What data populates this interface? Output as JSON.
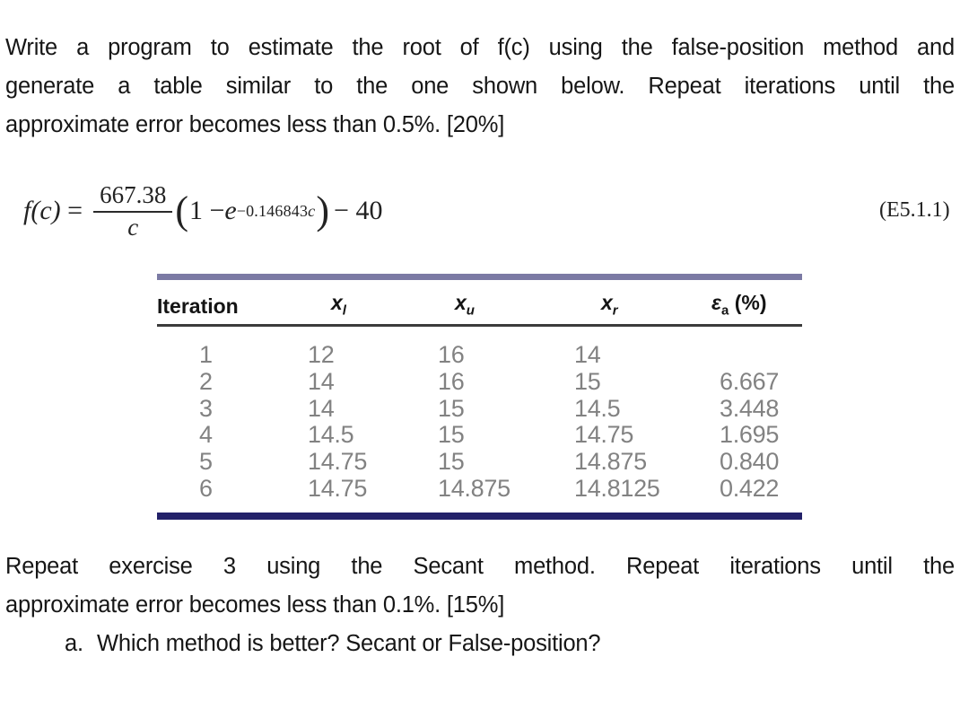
{
  "paragraph_top": {
    "line1": "Write a program to estimate the root of f(c) using the false-position method and",
    "line2": "generate a table similar to the one shown below. Repeat iterations until the",
    "line3": "approximate error becomes less than 0.5%. [20%]"
  },
  "equation": {
    "lhs": "f(c)",
    "equals": "=",
    "numerator": "667.38",
    "denominator": "c",
    "open_paren": "(",
    "body": "1 − ",
    "e": "e",
    "exponent_num": "−0.146843",
    "exponent_var": "c",
    "close_paren": ")",
    "tail": "− 40",
    "label": "(E5.1.1)"
  },
  "table": {
    "headers": {
      "iteration": "Iteration",
      "xl_base": "x",
      "xl_sub": "l",
      "xu_base": "x",
      "xu_sub": "u",
      "xr_base": "x",
      "xr_sub": "r",
      "ea_base": "ε",
      "ea_sub": "a",
      "ea_unit": " (%)"
    },
    "rows": [
      [
        "1",
        "12",
        "16",
        "14",
        ""
      ],
      [
        "2",
        "14",
        "16",
        "15",
        "6.667"
      ],
      [
        "3",
        "14",
        "15",
        "14.5",
        "3.448"
      ],
      [
        "4",
        "14.5",
        "15",
        "14.75",
        "1.695"
      ],
      [
        "5",
        "14.75",
        "15",
        "14.875",
        "0.840"
      ],
      [
        "6",
        "14.75",
        "14.875",
        "14.8125",
        "0.422"
      ]
    ],
    "rule_colors": {
      "top": "#7b7aa4",
      "header_line": "#3b3b3b",
      "bottom": "#232169"
    }
  },
  "paragraph_bottom": {
    "line1": "Repeat exercise 3 using the Secant method. Repeat iterations until the",
    "line2": "approximate error becomes less than 0.1%. [15%]",
    "item_a_marker": "a.",
    "item_a_text": "Which method is better? Secant or False-position?"
  }
}
